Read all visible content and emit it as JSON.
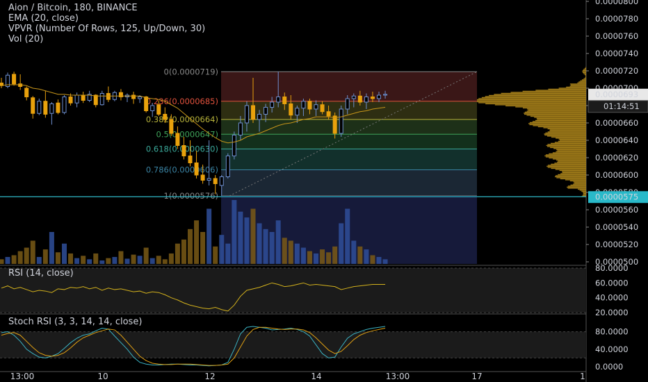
{
  "header": {
    "symbol_line": "Aion / Bitcoin, 180, BINANCE",
    "ema_line": "EMA (20, close)",
    "vpvr_line": "VPVR (Number Of Rows, 125, Up/Down, 30)",
    "vol_line": "Vol (20)"
  },
  "panes": {
    "rsi_label": "RSI (14, close)",
    "stoch_label": "Stoch RSI (3, 3, 14, 14, close)"
  },
  "price_axis": {
    "ticks": [
      "0.0000800",
      "0.0000780",
      "0.0000760",
      "0.0000740",
      "0.0000720",
      "0.0000700",
      "0.0000680",
      "0.0000660",
      "0.0000640",
      "0.0000620",
      "0.0000600",
      "0.0000580",
      "0.0000560",
      "0.0000540",
      "0.0000520",
      "0.0000500"
    ],
    "current_price": "0.0000693",
    "countdown": "01:14:51",
    "horizontal_line_price": "0.0000575"
  },
  "rsi_axis": {
    "ticks": [
      "80.0000",
      "60.0000",
      "40.0000",
      "20.0000"
    ]
  },
  "stoch_axis": {
    "ticks": [
      "80.0000",
      "40.0000",
      "0.0000"
    ]
  },
  "time_axis": {
    "ticks": [
      "13:00",
      "10",
      "12",
      "14",
      "13:00",
      "17",
      "1"
    ]
  },
  "fib_levels": [
    {
      "label": "0(0.0000719)",
      "ratio": 0
    },
    {
      "label": "0.236(0.0000685)",
      "ratio": 0.236
    },
    {
      "label": "0.382(0.0000664)",
      "ratio": 0.382
    },
    {
      "label": "0.5(0.0000647)",
      "ratio": 0.5
    },
    {
      "label": "0.618(0.0000630)",
      "ratio": 0.618
    },
    {
      "label": "0.786(0.0000606)",
      "ratio": 0.786
    },
    {
      "label": "1(0.0000576)",
      "ratio": 1
    }
  ],
  "colors": {
    "up": "#6e8fcf",
    "down": "#e8a10c",
    "ema": "#c8961a",
    "vpvr": "#b38a1c",
    "fib_0": "#3a1717",
    "fib_236": "#2e2e12",
    "fib_382": "#1d3018",
    "fib_5": "#13301c",
    "fib_618": "#12302c",
    "fib_786": "#1b2734",
    "fib_1": "#2a2a2a"
  },
  "chart_data": {
    "type": "candlestick",
    "price_range": [
      4.98e-05,
      8e-05
    ],
    "candles": [
      {
        "o": 7.06e-05,
        "h": 7.12e-05,
        "l": 7e-05,
        "c": 7.03e-05
      },
      {
        "o": 7.02e-05,
        "h": 7.18e-05,
        "l": 7e-05,
        "c": 7.15e-05
      },
      {
        "o": 7.16e-05,
        "h": 7.19e-05,
        "l": 7.03e-05,
        "c": 7.05e-05
      },
      {
        "o": 7.05e-05,
        "h": 7.16e-05,
        "l": 6.98e-05,
        "c": 7.02e-05
      },
      {
        "o": 7e-05,
        "h": 7.02e-05,
        "l": 6.86e-05,
        "c": 6.9e-05
      },
      {
        "o": 6.89e-05,
        "h": 6.91e-05,
        "l": 6.65e-05,
        "c": 6.71e-05
      },
      {
        "o": 6.71e-05,
        "h": 6.88e-05,
        "l": 6.69e-05,
        "c": 6.85e-05
      },
      {
        "o": 6.85e-05,
        "h": 6.97e-05,
        "l": 6.66e-05,
        "c": 6.7e-05
      },
      {
        "o": 6.71e-05,
        "h": 6.84e-05,
        "l": 6.58e-05,
        "c": 6.82e-05
      },
      {
        "o": 6.83e-05,
        "h": 6.87e-05,
        "l": 6.7e-05,
        "c": 6.72e-05
      },
      {
        "o": 6.72e-05,
        "h": 6.92e-05,
        "l": 6.7e-05,
        "c": 6.9e-05
      },
      {
        "o": 6.9e-05,
        "h": 6.94e-05,
        "l": 6.8e-05,
        "c": 6.83e-05
      },
      {
        "o": 6.83e-05,
        "h": 6.95e-05,
        "l": 6.78e-05,
        "c": 6.92e-05
      },
      {
        "o": 6.92e-05,
        "h": 6.96e-05,
        "l": 6.83e-05,
        "c": 6.86e-05
      },
      {
        "o": 6.86e-05,
        "h": 6.97e-05,
        "l": 6.84e-05,
        "c": 6.93e-05
      },
      {
        "o": 6.92e-05,
        "h": 6.93e-05,
        "l": 6.78e-05,
        "c": 6.81e-05
      },
      {
        "o": 6.81e-05,
        "h": 6.97e-05,
        "l": 6.8e-05,
        "c": 6.94e-05
      },
      {
        "o": 6.94e-05,
        "h": 7.02e-05,
        "l": 6.84e-05,
        "c": 6.87e-05
      },
      {
        "o": 6.87e-05,
        "h": 6.97e-05,
        "l": 6.85e-05,
        "c": 6.95e-05
      },
      {
        "o": 6.95e-05,
        "h": 6.99e-05,
        "l": 6.86e-05,
        "c": 6.9e-05
      },
      {
        "o": 6.9e-05,
        "h": 6.94e-05,
        "l": 6.84e-05,
        "c": 6.92e-05
      },
      {
        "o": 6.92e-05,
        "h": 6.96e-05,
        "l": 6.82e-05,
        "c": 6.88e-05
      },
      {
        "o": 6.88e-05,
        "h": 6.92e-05,
        "l": 6.83e-05,
        "c": 6.9e-05
      },
      {
        "o": 6.9e-05,
        "h": 6.91e-05,
        "l": 6.72e-05,
        "c": 6.74e-05
      },
      {
        "o": 6.74e-05,
        "h": 6.83e-05,
        "l": 6.67e-05,
        "c": 6.8e-05
      },
      {
        "o": 6.81e-05,
        "h": 6.86e-05,
        "l": 6.68e-05,
        "c": 6.7e-05
      },
      {
        "o": 6.7e-05,
        "h": 6.78e-05,
        "l": 6.6e-05,
        "c": 6.64e-05
      },
      {
        "o": 6.64e-05,
        "h": 6.7e-05,
        "l": 6.45e-05,
        "c": 6.48e-05
      },
      {
        "o": 6.48e-05,
        "h": 6.56e-05,
        "l": 6.3e-05,
        "c": 6.34e-05
      },
      {
        "o": 6.34e-05,
        "h": 6.44e-05,
        "l": 6.18e-05,
        "c": 6.22e-05
      },
      {
        "o": 6.22e-05,
        "h": 6.4e-05,
        "l": 6.1e-05,
        "c": 6.14e-05
      },
      {
        "o": 6.14e-05,
        "h": 6.28e-05,
        "l": 5.96e-05,
        "c": 6e-05
      },
      {
        "o": 6e-05,
        "h": 6.12e-05,
        "l": 5.9e-05,
        "c": 5.94e-05
      },
      {
        "o": 5.94e-05,
        "h": 6.4e-05,
        "l": 5.88e-05,
        "c": 5.96e-05
      },
      {
        "o": 5.96e-05,
        "h": 6e-05,
        "l": 5.78e-05,
        "c": 5.9e-05
      },
      {
        "o": 5.88e-05,
        "h": 6e-05,
        "l": 5.76e-05,
        "c": 5.98e-05
      },
      {
        "o": 5.98e-05,
        "h": 6.25e-05,
        "l": 5.96e-05,
        "c": 6.22e-05
      },
      {
        "o": 6.22e-05,
        "h": 6.5e-05,
        "l": 6.18e-05,
        "c": 6.46e-05
      },
      {
        "o": 6.46e-05,
        "h": 6.68e-05,
        "l": 6.4e-05,
        "c": 6.6e-05
      },
      {
        "o": 6.6e-05,
        "h": 6.85e-05,
        "l": 6.5e-05,
        "c": 6.8e-05
      },
      {
        "o": 6.8e-05,
        "h": 7.12e-05,
        "l": 6.6e-05,
        "c": 6.64e-05
      },
      {
        "o": 6.64e-05,
        "h": 6.75e-05,
        "l": 6.5e-05,
        "c": 6.7e-05
      },
      {
        "o": 6.7e-05,
        "h": 6.82e-05,
        "l": 6.61e-05,
        "c": 6.78e-05
      },
      {
        "o": 6.78e-05,
        "h": 6.9e-05,
        "l": 6.72e-05,
        "c": 6.84e-05
      },
      {
        "o": 6.84e-05,
        "h": 7.19e-05,
        "l": 6.78e-05,
        "c": 6.9e-05
      },
      {
        "o": 6.9e-05,
        "h": 6.95e-05,
        "l": 6.75e-05,
        "c": 6.82e-05
      },
      {
        "o": 6.82e-05,
        "h": 6.92e-05,
        "l": 6.64e-05,
        "c": 6.69e-05
      },
      {
        "o": 6.69e-05,
        "h": 6.8e-05,
        "l": 6.6e-05,
        "c": 6.77e-05
      },
      {
        "o": 6.77e-05,
        "h": 6.88e-05,
        "l": 6.68e-05,
        "c": 6.85e-05
      },
      {
        "o": 6.85e-05,
        "h": 6.88e-05,
        "l": 6.7e-05,
        "c": 6.76e-05
      },
      {
        "o": 6.76e-05,
        "h": 6.86e-05,
        "l": 6.68e-05,
        "c": 6.81e-05
      },
      {
        "o": 6.81e-05,
        "h": 6.85e-05,
        "l": 6.7e-05,
        "c": 6.73e-05
      },
      {
        "o": 6.73e-05,
        "h": 6.8e-05,
        "l": 6.64e-05,
        "c": 6.68e-05
      },
      {
        "o": 6.68e-05,
        "h": 6.72e-05,
        "l": 6.42e-05,
        "c": 6.48e-05
      },
      {
        "o": 6.48e-05,
        "h": 6.8e-05,
        "l": 6.44e-05,
        "c": 6.76e-05
      },
      {
        "o": 6.76e-05,
        "h": 6.92e-05,
        "l": 6.7e-05,
        "c": 6.88e-05
      },
      {
        "o": 6.88e-05,
        "h": 6.94e-05,
        "l": 6.78e-05,
        "c": 6.91e-05
      },
      {
        "o": 6.91e-05,
        "h": 6.97e-05,
        "l": 6.8e-05,
        "c": 6.84e-05
      },
      {
        "o": 6.84e-05,
        "h": 6.94e-05,
        "l": 6.76e-05,
        "c": 6.9e-05
      },
      {
        "o": 6.9e-05,
        "h": 6.96e-05,
        "l": 6.84e-05,
        "c": 6.88e-05
      },
      {
        "o": 6.88e-05,
        "h": 6.96e-05,
        "l": 6.84e-05,
        "c": 6.92e-05
      },
      {
        "o": 6.92e-05,
        "h": 6.97e-05,
        "l": 6.88e-05,
        "c": 6.93e-05
      }
    ],
    "ema": [
      7.03e-05,
      7.04e-05,
      7.04e-05,
      7.04e-05,
      7.03e-05,
      7e-05,
      6.99e-05,
      6.97e-05,
      6.95e-05,
      6.93e-05,
      6.93e-05,
      6.92e-05,
      6.92e-05,
      6.92e-05,
      6.92e-05,
      6.91e-05,
      6.91e-05,
      6.91e-05,
      6.91e-05,
      6.91e-05,
      6.91e-05,
      6.91e-05,
      6.91e-05,
      6.89e-05,
      6.88e-05,
      6.87e-05,
      6.85e-05,
      6.81e-05,
      6.77e-05,
      6.71e-05,
      6.65e-05,
      6.59e-05,
      6.53e-05,
      6.48e-05,
      6.43e-05,
      6.39e-05,
      6.37e-05,
      6.38e-05,
      6.4e-05,
      6.44e-05,
      6.46e-05,
      6.48e-05,
      6.51e-05,
      6.54e-05,
      6.57e-05,
      6.59e-05,
      6.6e-05,
      6.62e-05,
      6.64e-05,
      6.65e-05,
      6.67e-05,
      6.67e-05,
      6.67e-05,
      6.66e-05,
      6.67e-05,
      6.69e-05,
      6.71e-05,
      6.73e-05,
      6.74e-05,
      6.76e-05,
      6.77e-05,
      6.78e-05
    ],
    "volume": [
      8,
      12,
      15,
      22,
      28,
      40,
      12,
      25,
      55,
      20,
      35,
      18,
      10,
      14,
      8,
      18,
      6,
      10,
      12,
      22,
      9,
      16,
      14,
      28,
      10,
      14,
      8,
      18,
      35,
      42,
      60,
      75,
      55,
      95,
      30,
      50,
      35,
      110,
      90,
      80,
      95,
      70,
      60,
      55,
      75,
      45,
      40,
      35,
      28,
      22,
      18,
      25,
      20,
      30,
      70,
      95,
      40,
      30,
      25,
      15,
      12,
      8
    ],
    "rsi": [
      53,
      56,
      52,
      54,
      51,
      48,
      50,
      49,
      47,
      52,
      51,
      54,
      53,
      55,
      52,
      54,
      50,
      53,
      51,
      52,
      50,
      48,
      49,
      46,
      48,
      47,
      44,
      40,
      37,
      33,
      30,
      28,
      26,
      25,
      27,
      24,
      22,
      30,
      42,
      50,
      52,
      54,
      57,
      60,
      58,
      55,
      56,
      58,
      60,
      57,
      58,
      57,
      56,
      55,
      51,
      53,
      55,
      56,
      57,
      58,
      58,
      58
    ],
    "stoch_k": [
      78,
      80,
      72,
      58,
      40,
      30,
      22,
      20,
      24,
      30,
      42,
      55,
      65,
      72,
      75,
      82,
      88,
      86,
      70,
      55,
      40,
      22,
      10,
      6,
      4,
      4,
      5,
      6,
      6,
      5,
      4,
      4,
      3,
      2,
      3,
      4,
      10,
      40,
      75,
      90,
      92,
      90,
      88,
      84,
      85,
      86,
      88,
      85,
      80,
      70,
      50,
      30,
      20,
      22,
      45,
      65,
      75,
      80,
      85,
      88,
      90,
      92
    ],
    "stoch_d": [
      72,
      76,
      78,
      72,
      58,
      44,
      32,
      26,
      24,
      26,
      32,
      43,
      56,
      66,
      72,
      78,
      82,
      86,
      84,
      72,
      56,
      40,
      24,
      14,
      8,
      6,
      5,
      5,
      6,
      6,
      6,
      5,
      4,
      3,
      3,
      4,
      6,
      20,
      45,
      70,
      85,
      90,
      90,
      88,
      86,
      85,
      86,
      86,
      84,
      78,
      66,
      52,
      38,
      30,
      35,
      48,
      62,
      72,
      78,
      82,
      85,
      88
    ]
  }
}
